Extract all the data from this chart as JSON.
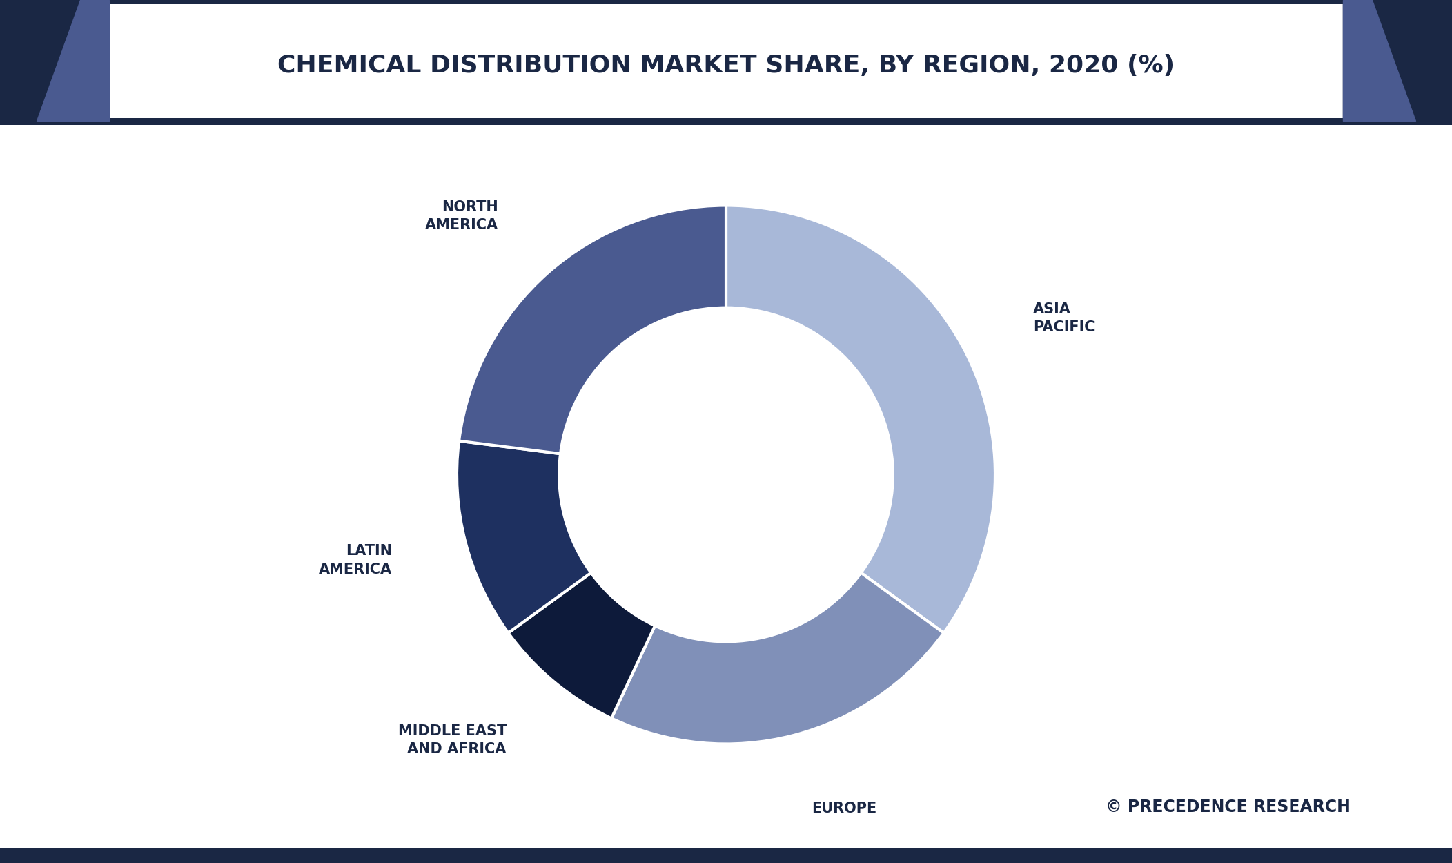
{
  "title": "CHEMICAL DISTRIBUTION MARKET SHARE, BY REGION, 2020 (%)",
  "title_fontsize": 26,
  "title_color": "#1a2744",
  "title_bg_color": "#ffffff",
  "background_color": "#ffffff",
  "segments": [
    {
      "label": "ASIA\nPACIFIC",
      "value": 35,
      "color": "#a8b8d8"
    },
    {
      "label": "EUROPE",
      "value": 22,
      "color": "#8090b8"
    },
    {
      "label": "MIDDLE EAST\nAND AFRICA",
      "value": 8,
      "color": "#0d1a3a"
    },
    {
      "label": "LATIN\nAMERICA",
      "value": 12,
      "color": "#1e3060"
    },
    {
      "label": "NORTH\nAMERICA",
      "value": 23,
      "color": "#4a5a90"
    }
  ],
  "label_fontsize": 15,
  "label_color": "#1a2744",
  "watermark": "© PRECEDENCE RESEARCH",
  "watermark_color": "#1a2744",
  "watermark_fontsize": 17,
  "donut_width": 0.38,
  "start_angle": 90,
  "label_distance": 1.28,
  "header_stripe_color": "#1a2744",
  "header_accent_color": "#4a5a90"
}
